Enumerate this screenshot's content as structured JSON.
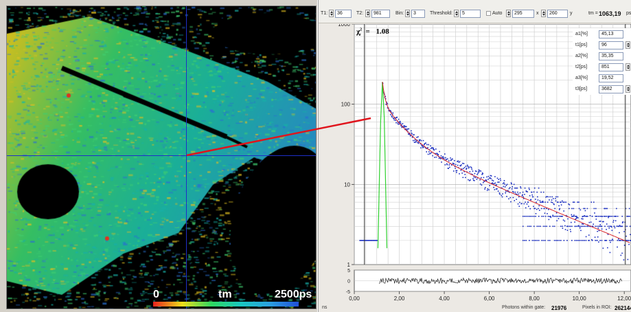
{
  "image_panel": {
    "colorbar": {
      "min_label": "0",
      "mid_label": "tm",
      "max_label": "2500ps",
      "colors": [
        "#e8231e",
        "#f0e01a",
        "#2fd860",
        "#19c8c0",
        "#2aa0e0",
        "#2050d8"
      ]
    },
    "crosshair_color": "#1f2fc8",
    "connector_color": "#e0141c"
  },
  "toolbar": {
    "t1_label": "T1:",
    "t1_value": "36",
    "t2_label": "T2:",
    "t2_value": "981",
    "bin_label": "Bin:",
    "bin_value": "3",
    "threshold_label": "Threshold:",
    "threshold_value": "5",
    "auto_label": "Auto",
    "x_value": "295",
    "x_label": "x",
    "y_value": "260",
    "y_label": "y",
    "tm_label": "tm =",
    "tm_value": "1063,19",
    "tm_unit": "ps"
  },
  "fit": {
    "chi_symbol": "χ",
    "chi_value": "1.08",
    "params": [
      {
        "label": "a1[%]",
        "value": "45,13",
        "spinner": false
      },
      {
        "label": "t1[ps]",
        "value": "96",
        "spinner": true
      },
      {
        "label": "a2[%]",
        "value": "35,35",
        "spinner": false
      },
      {
        "label": "t2[ps]",
        "value": "851",
        "spinner": true
      },
      {
        "label": "a3[%]",
        "value": "19,52",
        "spinner": false
      },
      {
        "label": "t3[ps]",
        "value": "3682",
        "spinner": true
      }
    ]
  },
  "status": {
    "unit": "ns",
    "photons_label": "Photons within gate:",
    "photons_value": "21976",
    "pixels_label": "Pixels in ROI:",
    "pixels_value": "262144"
  },
  "chart_data": {
    "type": "scatter",
    "yscale": "log",
    "xlim": [
      0,
      12.3
    ],
    "ylim": [
      1,
      1000
    ],
    "x_ticks": [
      "0,00",
      "2,00",
      "4,00",
      "6,00",
      "8,00",
      "10,00",
      "12,00"
    ],
    "x_tick_values": [
      0,
      2,
      4,
      6,
      8,
      10,
      12
    ],
    "y_ticks": [
      "1",
      "10",
      "100",
      "1000"
    ],
    "y_tick_values": [
      1,
      10,
      100,
      1000
    ],
    "grid": true,
    "series": [
      {
        "kind": "decay_points",
        "color": "#1a2ec0",
        "peak_x": 1.25,
        "peak_y": 190,
        "end_x": 12.3,
        "background": 2
      },
      {
        "kind": "fit_curve",
        "color": "#d8242a",
        "components": [
          {
            "a": 45.13,
            "tau_ns": 0.096
          },
          {
            "a": 35.35,
            "tau_ns": 0.851
          },
          {
            "a": 19.52,
            "tau_ns": 3.682
          }
        ],
        "scale": 190,
        "start_x": 1.25
      },
      {
        "kind": "irf",
        "color": "#2ed02e",
        "peak_x": 1.25,
        "peak_y": 190,
        "base_y": 1.6
      }
    ],
    "residuals": {
      "ylim": [
        -5,
        5
      ],
      "y_ticks": [
        "5",
        "0",
        "-5"
      ],
      "y_tick_values": [
        5,
        0,
        -5
      ],
      "color": "#000000"
    }
  }
}
